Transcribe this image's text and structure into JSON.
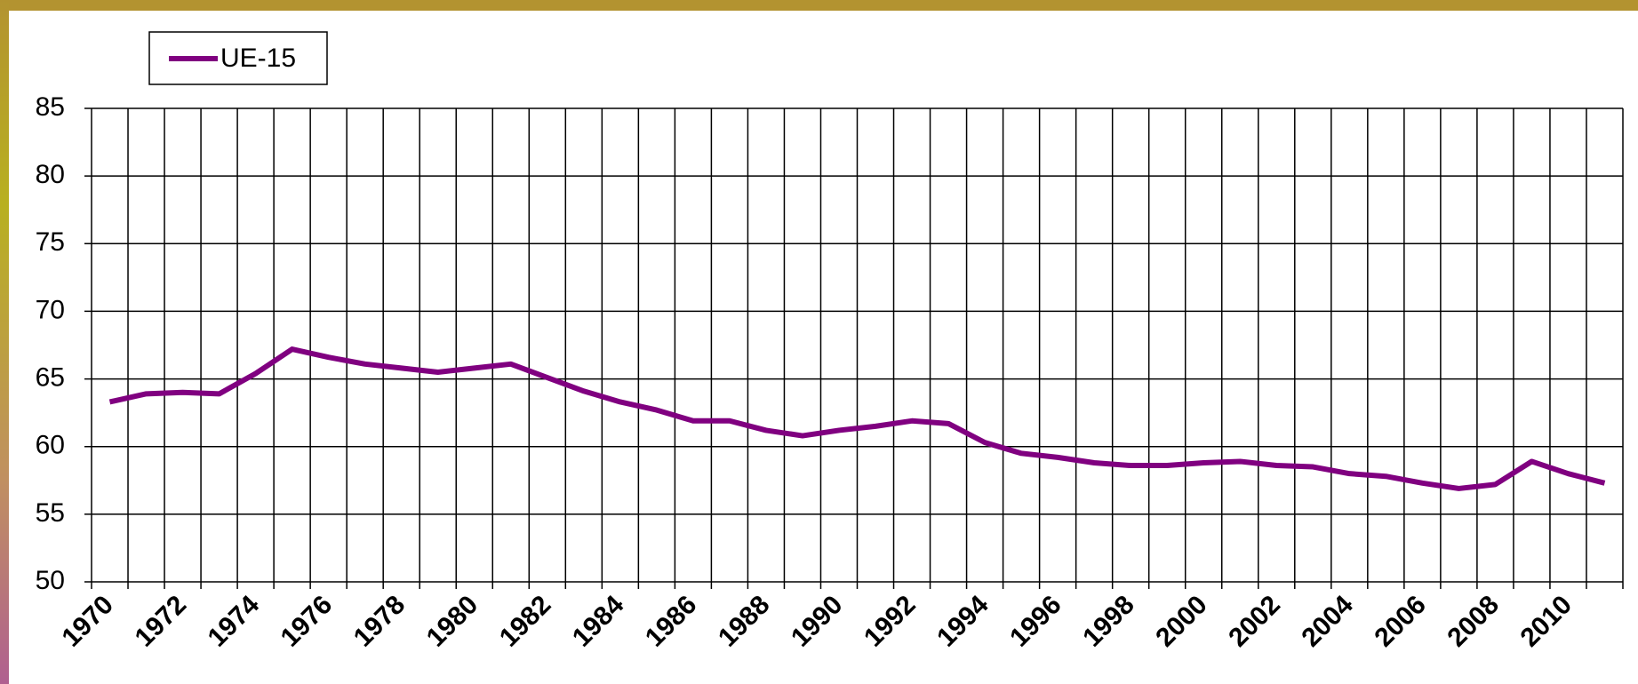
{
  "chart_data": {
    "type": "line",
    "categories": [
      "1970",
      null,
      "1972",
      null,
      "1974",
      null,
      "1976",
      null,
      "1978",
      null,
      "1980",
      null,
      "1982",
      null,
      "1984",
      null,
      "1986",
      null,
      "1988",
      null,
      "1990",
      null,
      "1992",
      null,
      "1994",
      null,
      "1996",
      null,
      "1998",
      null,
      "2000",
      null,
      "2002",
      null,
      "2004",
      null,
      "2006",
      null,
      "2008",
      null,
      "2010",
      null
    ],
    "series": [
      {
        "name": "UE-15",
        "color": "#800080",
        "values": [
          63.3,
          63.9,
          64.0,
          63.9,
          65.4,
          67.2,
          66.6,
          66.1,
          65.8,
          65.5,
          65.8,
          66.1,
          65.1,
          64.1,
          63.3,
          62.7,
          61.9,
          61.9,
          61.2,
          60.8,
          61.2,
          61.5,
          61.9,
          61.7,
          60.3,
          59.5,
          59.2,
          58.8,
          58.6,
          58.6,
          58.8,
          58.9,
          58.6,
          58.5,
          58.0,
          57.8,
          57.3,
          56.9,
          57.2,
          58.9,
          58.0,
          57.3
        ]
      }
    ],
    "ylim": [
      50,
      85
    ],
    "yticks": [
      50,
      55,
      60,
      65,
      70,
      75,
      80,
      85
    ],
    "grid": true,
    "legend": "top-left"
  }
}
